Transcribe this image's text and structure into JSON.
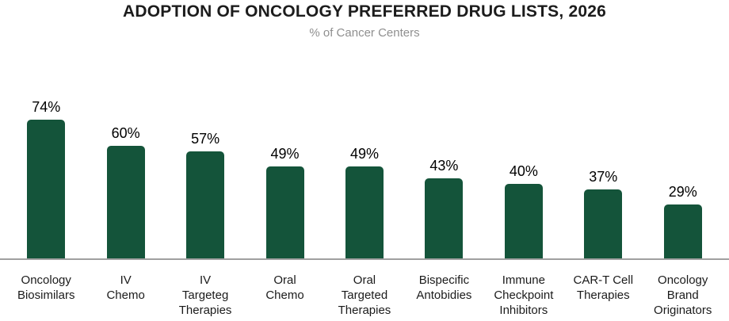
{
  "header": {
    "title": "ADOPTION OF ONCOLOGY PREFERRED DRUG LISTS, 2026",
    "subtitle": "% of Cancer Centers"
  },
  "chart_data": {
    "type": "bar",
    "title": "ADOPTION OF ONCOLOGY PREFERRED DRUG LISTS, 2026",
    "subtitle": "% of Cancer Centers",
    "ylabel": "% of Cancer Centers",
    "unit": "%",
    "categories": [
      "Oncology Biosimilars",
      "IV Chemo",
      "IV Targeteg Therapies",
      "Oral Chemo",
      "Oral Targeted Therapies",
      "Bispecific Antobidies",
      "Immune Checkpoint Inhibitors",
      "CAR-T Cell Therapies",
      "Oncology Brand Originators"
    ],
    "category_lines": [
      [
        "Oncology",
        "Biosimilars"
      ],
      [
        "IV",
        "Chemo"
      ],
      [
        "IV",
        "Targeteg",
        "Therapies"
      ],
      [
        "Oral",
        "Chemo"
      ],
      [
        "Oral",
        "Targeted",
        "Therapies"
      ],
      [
        "Bispecific",
        "Antobidies"
      ],
      [
        "Immune",
        "Checkpoint",
        "Inhibitors"
      ],
      [
        "CAR-T Cell",
        "Therapies"
      ],
      [
        "Oncology",
        "Brand",
        "Originators"
      ]
    ],
    "values": [
      74,
      60,
      57,
      49,
      49,
      43,
      40,
      37,
      29
    ],
    "value_labels": [
      "74%",
      "60%",
      "57%",
      "49%",
      "49%",
      "43%",
      "40%",
      "37%",
      "29%"
    ],
    "grid": false,
    "legend": false,
    "value_labels_shown": true,
    "bar_color": "#14543A",
    "axis_line_color": "#A0A0A0",
    "title_color": "#1C1C1C",
    "subtitle_color": "#8F8F8F",
    "category_label_color": "#1B1B1B",
    "value_label_color": "#000000"
  }
}
